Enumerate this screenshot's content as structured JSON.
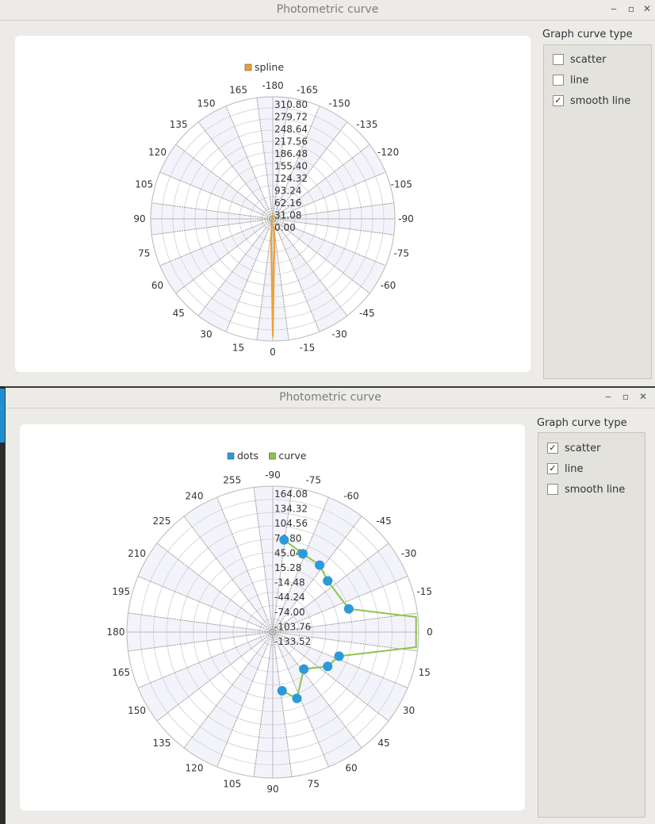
{
  "window1": {
    "title": "Photometric curve",
    "group_title": "Graph curve type",
    "options": [
      {
        "label": "scatter",
        "checked": false
      },
      {
        "label": "line",
        "checked": false
      },
      {
        "label": "smooth line",
        "checked": true
      }
    ]
  },
  "window2": {
    "title": "Photometric curve",
    "group_title": "Graph curve type",
    "options": [
      {
        "label": "scatter",
        "checked": true
      },
      {
        "label": "line",
        "checked": true
      },
      {
        "label": "smooth line",
        "checked": false
      }
    ]
  },
  "window_controls": {
    "minimize": "‒",
    "maximize": "▫",
    "close": "✕"
  },
  "chart_data": [
    {
      "type": "polar",
      "legend": [
        "spline"
      ],
      "legend_position": "top",
      "angle_labels": [
        "-180",
        "-165",
        "-150",
        "-135",
        "-120",
        "-105",
        "-90",
        "-75",
        "-60",
        "-45",
        "-30",
        "-15",
        "0",
        "15",
        "30",
        "45",
        "60",
        "75",
        "90",
        "105",
        "120",
        "135",
        "150",
        "165"
      ],
      "radial_labels": [
        "310.80",
        "279.72",
        "248.64",
        "217.56",
        "186.48",
        "155.40",
        "124.32",
        "93.24",
        "62.16",
        "31.08",
        "0.00"
      ],
      "radial_range": [
        0,
        310.8
      ],
      "series": [
        {
          "name": "spline",
          "color": "#f0a030",
          "angles": [
            -10,
            -4,
            0,
            4,
            10,
            30,
            90,
            180,
            270
          ],
          "values": [
            18,
            60,
            300,
            60,
            18,
            6,
            2,
            6,
            2
          ]
        }
      ]
    },
    {
      "type": "polar",
      "legend": [
        "dots",
        "curve"
      ],
      "legend_position": "top",
      "angle_labels": [
        "-90",
        "-75",
        "-60",
        "-45",
        "-30",
        "-15",
        "0",
        "15",
        "30",
        "45",
        "60",
        "75",
        "90",
        "105",
        "120",
        "135",
        "150",
        "165",
        "180",
        "195",
        "210",
        "225",
        "240",
        "255"
      ],
      "radial_labels": [
        "164.08",
        "134.32",
        "104.56",
        "74.80",
        "45.04",
        "15.28",
        "-14.48",
        "-44.24",
        "-74.00",
        "-103.76",
        "-133.52"
      ],
      "radial_range": [
        -163.28,
        164.08
      ],
      "series": [
        {
          "name": "dots",
          "color": "#2a9ad8",
          "angles": [
            -83,
            -69,
            -55,
            -43,
            -17,
            20,
            32,
            50,
            70,
            81
          ],
          "values": [
            45,
            25,
            20,
            5,
            15,
            -5,
            -18,
            -55,
            -5,
            -30
          ]
        },
        {
          "name": "curve",
          "color": "#8cc44a",
          "angles": [
            -83,
            -69,
            -55,
            -43,
            -17,
            -6,
            6,
            20,
            32,
            50,
            70,
            81
          ],
          "values": [
            45,
            25,
            20,
            5,
            15,
            160,
            160,
            -5,
            -18,
            -55,
            -5,
            -30
          ]
        }
      ]
    }
  ]
}
